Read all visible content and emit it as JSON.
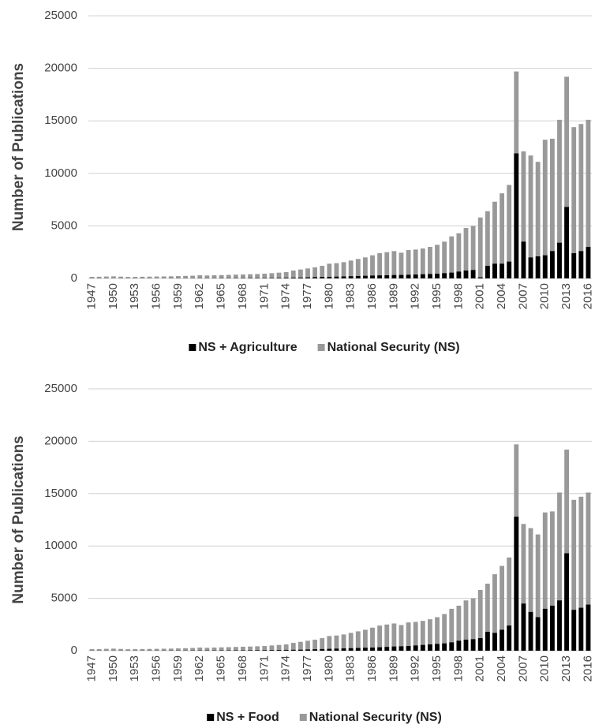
{
  "chart_data": [
    {
      "type": "bar",
      "x": [
        1947,
        1948,
        1949,
        1950,
        1951,
        1952,
        1953,
        1954,
        1955,
        1956,
        1957,
        1958,
        1959,
        1960,
        1961,
        1962,
        1963,
        1964,
        1965,
        1966,
        1967,
        1968,
        1969,
        1970,
        1971,
        1972,
        1973,
        1974,
        1975,
        1976,
        1977,
        1978,
        1979,
        1980,
        1981,
        1982,
        1983,
        1984,
        1985,
        1986,
        1987,
        1988,
        1989,
        1990,
        1991,
        1992,
        1993,
        1994,
        1995,
        1996,
        1997,
        1998,
        1999,
        2000,
        2001,
        2002,
        2003,
        2004,
        2005,
        2006,
        2007,
        2008,
        2009,
        2010,
        2011,
        2012,
        2013,
        2014,
        2015,
        2016
      ],
      "xticks": [
        1947,
        1950,
        1953,
        1956,
        1959,
        1962,
        1965,
        1968,
        1971,
        1974,
        1977,
        1980,
        1983,
        1986,
        1989,
        1992,
        1995,
        1998,
        2001,
        2004,
        2007,
        2010,
        2013,
        2016
      ],
      "y_label": "Number of Publications",
      "ylim": [
        0,
        25000
      ],
      "yticks": [
        0,
        5000,
        10000,
        15000,
        20000,
        25000
      ],
      "grid": true,
      "series": [
        {
          "name": "NS + Agriculture",
          "color": "#000000",
          "values": [
            5,
            5,
            5,
            5,
            5,
            5,
            5,
            5,
            5,
            5,
            5,
            10,
            10,
            10,
            10,
            15,
            15,
            15,
            20,
            20,
            25,
            25,
            30,
            30,
            35,
            40,
            50,
            60,
            70,
            80,
            100,
            120,
            140,
            150,
            170,
            190,
            210,
            230,
            250,
            270,
            290,
            300,
            320,
            330,
            350,
            370,
            400,
            420,
            450,
            500,
            550,
            650,
            750,
            800,
            100,
            1200,
            1400,
            1400,
            1600,
            11900,
            3500,
            2000,
            2100,
            2200,
            2600,
            3400,
            6800,
            2400,
            2600,
            3000
          ]
        },
        {
          "name": "National Security (NS)",
          "color": "#999999",
          "values": [
            150,
            160,
            180,
            200,
            170,
            140,
            150,
            160,
            170,
            180,
            190,
            200,
            220,
            240,
            260,
            300,
            280,
            300,
            320,
            340,
            360,
            380,
            400,
            420,
            450,
            500,
            550,
            600,
            750,
            850,
            950,
            1050,
            1200,
            1400,
            1450,
            1550,
            1700,
            1850,
            2000,
            2200,
            2400,
            2500,
            2600,
            2450,
            2700,
            2750,
            2850,
            3000,
            3200,
            3500,
            4000,
            4300,
            4800,
            5000,
            5800,
            6400,
            7300,
            8100,
            8900,
            19700,
            12100,
            11700,
            11100,
            13200,
            13300,
            15100,
            19200,
            14400,
            14700,
            15100
          ]
        }
      ]
    },
    {
      "type": "bar",
      "x": [
        1947,
        1948,
        1949,
        1950,
        1951,
        1952,
        1953,
        1954,
        1955,
        1956,
        1957,
        1958,
        1959,
        1960,
        1961,
        1962,
        1963,
        1964,
        1965,
        1966,
        1967,
        1968,
        1969,
        1970,
        1971,
        1972,
        1973,
        1974,
        1975,
        1976,
        1977,
        1978,
        1979,
        1980,
        1981,
        1982,
        1983,
        1984,
        1985,
        1986,
        1987,
        1988,
        1989,
        1990,
        1991,
        1992,
        1993,
        1994,
        1995,
        1996,
        1997,
        1998,
        1999,
        2000,
        2001,
        2002,
        2003,
        2004,
        2005,
        2006,
        2007,
        2008,
        2009,
        2010,
        2011,
        2012,
        2013,
        2014,
        2015,
        2016
      ],
      "xticks": [
        1947,
        1950,
        1953,
        1956,
        1959,
        1962,
        1965,
        1968,
        1971,
        1974,
        1977,
        1980,
        1983,
        1986,
        1989,
        1992,
        1995,
        1998,
        2001,
        2004,
        2007,
        2010,
        2013,
        2016
      ],
      "y_label": "Number of Publications",
      "ylim": [
        0,
        25000
      ],
      "yticks": [
        0,
        5000,
        10000,
        15000,
        20000,
        25000
      ],
      "grid": true,
      "series": [
        {
          "name": "NS + Food",
          "color": "#000000",
          "values": [
            10,
            10,
            10,
            10,
            10,
            10,
            10,
            10,
            15,
            15,
            15,
            20,
            20,
            20,
            25,
            25,
            30,
            30,
            35,
            35,
            40,
            40,
            45,
            50,
            55,
            60,
            70,
            80,
            90,
            100,
            120,
            140,
            160,
            180,
            200,
            220,
            240,
            260,
            280,
            300,
            330,
            360,
            400,
            420,
            450,
            500,
            550,
            600,
            650,
            700,
            800,
            950,
            1050,
            1100,
            1200,
            1800,
            1700,
            2000,
            2400,
            12800,
            4500,
            3700,
            3200,
            4000,
            4300,
            4800,
            9300,
            3900,
            4100,
            4400
          ]
        },
        {
          "name": "National Security (NS)",
          "color": "#999999",
          "values": [
            150,
            160,
            180,
            200,
            170,
            140,
            150,
            160,
            170,
            180,
            190,
            200,
            220,
            240,
            260,
            300,
            280,
            300,
            320,
            340,
            360,
            380,
            400,
            420,
            450,
            500,
            550,
            600,
            750,
            850,
            950,
            1050,
            1200,
            1400,
            1450,
            1550,
            1700,
            1850,
            2000,
            2200,
            2400,
            2500,
            2600,
            2450,
            2700,
            2750,
            2850,
            3000,
            3200,
            3500,
            4000,
            4300,
            4800,
            5000,
            5800,
            6400,
            7300,
            8100,
            8900,
            19700,
            12100,
            11700,
            11100,
            13200,
            13300,
            15100,
            19200,
            14400,
            14700,
            15100
          ]
        }
      ]
    }
  ]
}
